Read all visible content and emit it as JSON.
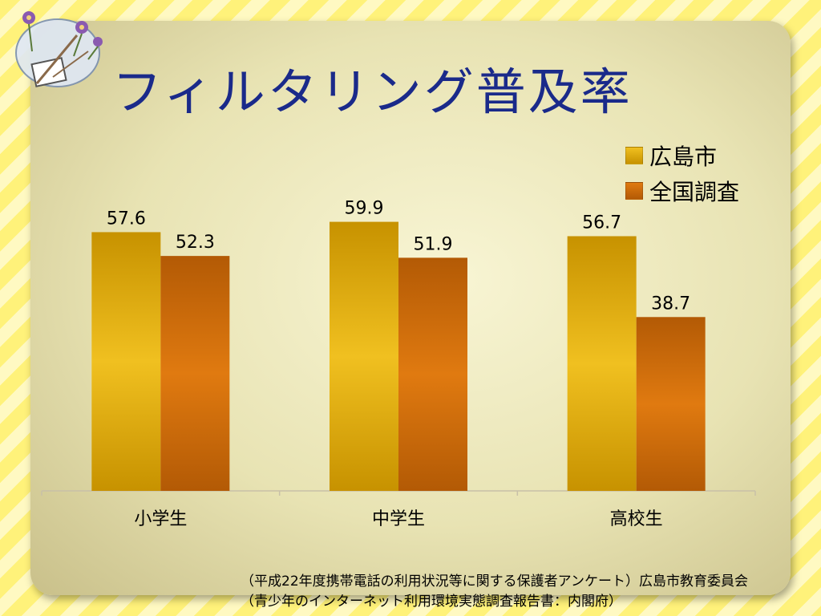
{
  "page": {
    "title": "フィルタリング普及率"
  },
  "colors": {
    "series_1": [
      "#f0c020",
      "#c79200"
    ],
    "series_2": [
      "#e07a10",
      "#b35a05"
    ],
    "axis_line": "#c8c0a8",
    "title": "#1a2a8a"
  },
  "chart_data": {
    "type": "bar",
    "title": "",
    "categories": [
      "小学生",
      "中学生",
      "高校生"
    ],
    "series": [
      {
        "name": "広島市",
        "values": [
          57.6,
          59.9,
          56.7
        ]
      },
      {
        "name": "全国調査",
        "values": [
          52.3,
          51.9,
          38.7
        ]
      }
    ],
    "xlabel": "",
    "ylabel": "",
    "ylim": [
      0,
      60
    ],
    "grid": false,
    "data_labels": true,
    "legend_position": "top-right"
  },
  "source_notes": [
    "（平成22年度携帯電話の利用状況等に関する保護者アンケート）広島市教育委員会",
    "（青少年のインターネット利用環境実態調査報告書：内閣府）"
  ]
}
